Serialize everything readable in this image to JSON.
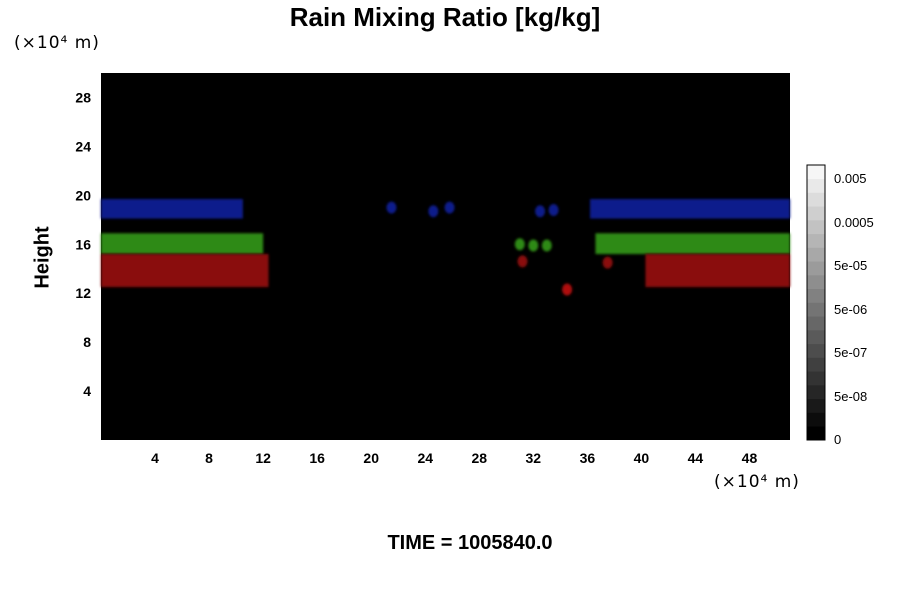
{
  "chart_data": {
    "type": "heatmap",
    "title": "Rain Mixing Ratio [kg/kg]",
    "ylabel": "Height",
    "yunit": "(×10⁴ m)",
    "xunit": "(×10⁴ m)",
    "xlim": [
      0,
      51
    ],
    "ylim": [
      0,
      30
    ],
    "x_ticks": [
      4,
      8,
      12,
      16,
      20,
      24,
      28,
      32,
      36,
      40,
      44,
      48
    ],
    "y_ticks": [
      4,
      8,
      12,
      16,
      20,
      24,
      28
    ],
    "background_color": "#000000",
    "colorbar": {
      "tick_labels": [
        "0.005",
        "0.0005",
        "5e-05",
        "5e-06",
        "5e-07",
        "5e-08",
        "0"
      ],
      "colors_bottom_to_top": [
        "#000000",
        "#0c0c0c",
        "#191919",
        "#262626",
        "#333333",
        "#404040",
        "#4d4d4d",
        "#5a5a5a",
        "#676767",
        "#747474",
        "#818181",
        "#8e8e8e",
        "#9b9b9b",
        "#a8a8a8",
        "#b5b5b5",
        "#c2c2c2",
        "#cfcfcf",
        "#dcdcdc",
        "#e9e9e9",
        "#f6f6f6"
      ]
    },
    "bands": [
      {
        "color": "#101a8c",
        "x0": 0,
        "x1": 10.5,
        "y0": 18.1,
        "y1": 19.7
      },
      {
        "color": "#101a8c",
        "x0": 36.2,
        "x1": 51,
        "y0": 18.1,
        "y1": 19.7
      },
      {
        "color": "#2f8a14",
        "x0": 0,
        "x1": 12,
        "y0": 15.2,
        "y1": 16.9
      },
      {
        "color": "#2f8a14",
        "x0": 36.6,
        "x1": 51,
        "y0": 15.2,
        "y1": 16.9
      },
      {
        "color": "#8a0f0c",
        "x0": 0,
        "x1": 12.4,
        "y0": 12.5,
        "y1": 15.2
      },
      {
        "color": "#8a0f0c",
        "x0": 40.3,
        "x1": 51,
        "y0": 12.5,
        "y1": 15.2
      }
    ],
    "blobs": [
      {
        "color": "#101a8c",
        "x": 21.5,
        "y": 19.0
      },
      {
        "color": "#101a8c",
        "x": 24.6,
        "y": 18.7
      },
      {
        "color": "#101a8c",
        "x": 25.8,
        "y": 19.0
      },
      {
        "color": "#101a8c",
        "x": 32.5,
        "y": 18.7
      },
      {
        "color": "#101a8c",
        "x": 33.5,
        "y": 18.8
      },
      {
        "color": "#2f8a14",
        "x": 31.0,
        "y": 16.0
      },
      {
        "color": "#2f8a14",
        "x": 32.0,
        "y": 15.9
      },
      {
        "color": "#2f8a14",
        "x": 33.0,
        "y": 15.9
      },
      {
        "color": "#8a0f0c",
        "x": 31.2,
        "y": 14.6
      },
      {
        "color": "#8a0f0c",
        "x": 37.5,
        "y": 14.5
      },
      {
        "color": "#b01010",
        "x": 34.5,
        "y": 12.3
      }
    ]
  },
  "footer": {
    "time_label": "TIME = 1005840.0"
  }
}
